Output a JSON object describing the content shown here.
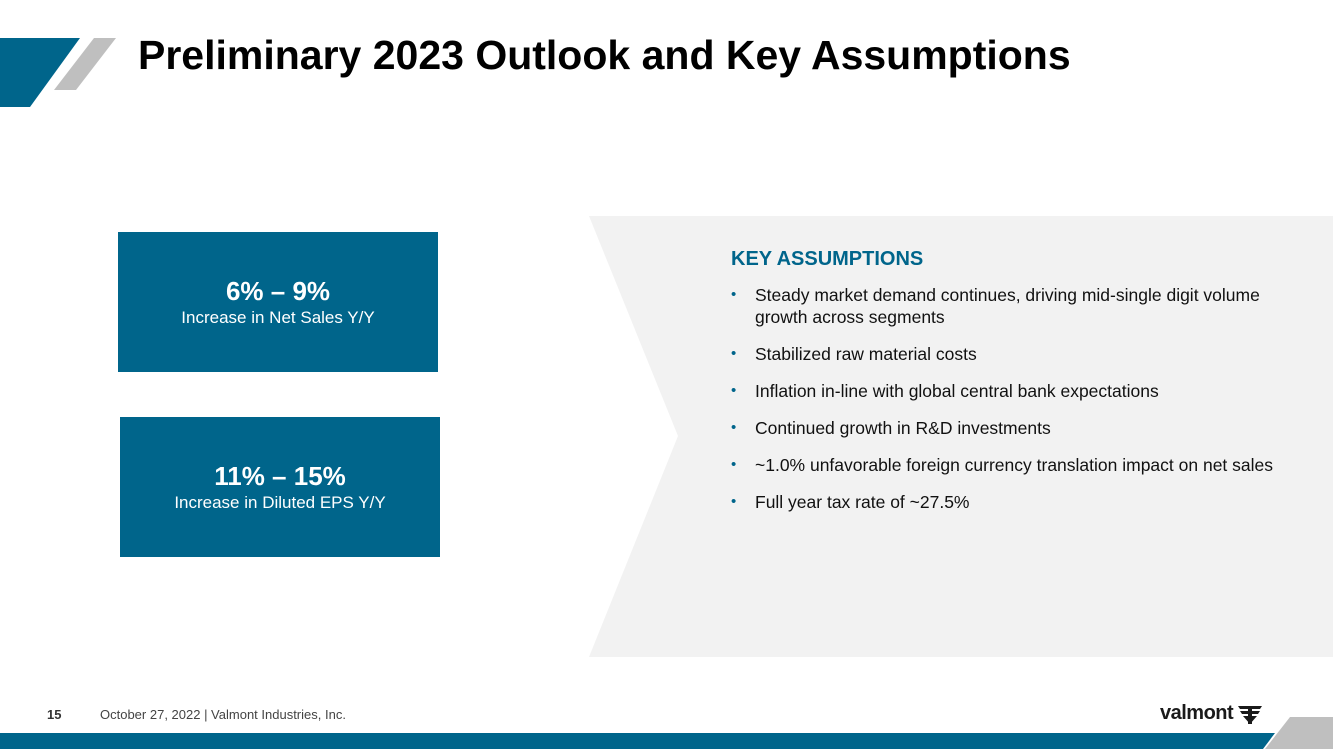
{
  "title": "Preliminary 2023 Outlook and Key Assumptions",
  "outlook": [
    {
      "value": "6% – 9%",
      "label": "Increase in Net Sales Y/Y"
    },
    {
      "value": "11% – 15%",
      "label": "Increase in Diluted EPS Y/Y"
    }
  ],
  "assumptions": {
    "heading": "KEY ASSUMPTIONS",
    "items": [
      "Steady market demand continues, driving mid-single digit volume growth across segments",
      "Stabilized raw material costs",
      "Inflation in-line with global central bank expectations",
      "Continued growth in R&D investments",
      "~1.0% unfavorable foreign currency translation impact on net sales",
      "Full year tax rate of ~27.5%"
    ]
  },
  "footer": {
    "page_number": "15",
    "text": "October 27, 2022  |  Valmont Industries, Inc.",
    "logo_text": "valmont"
  },
  "colors": {
    "accent": "#00658b",
    "panel": "#f2f2f2",
    "grey_stripe": "#bfbfbf"
  }
}
